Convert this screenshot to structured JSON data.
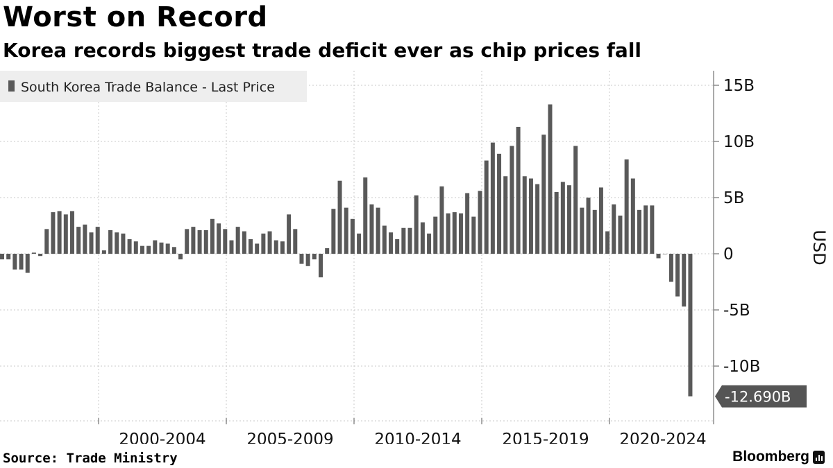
{
  "header": {
    "title": "Worst on Record",
    "subtitle": "Korea records biggest trade deficit ever as chip prices fall"
  },
  "footer": {
    "source": "Source: Trade Ministry",
    "brand": "Bloomberg"
  },
  "colors": {
    "bar": "#595959",
    "grid": "#c8c8c8",
    "axis": "#555555",
    "legend_bg": "#eeeeee",
    "last_price_bg": "#555555"
  },
  "chart_data": {
    "type": "bar",
    "title": "Worst on Record",
    "subtitle": "Korea records biggest trade deficit ever as chip prices fall",
    "ylabel": "USD",
    "xlabel": "",
    "ylim": [
      -15,
      16.3
    ],
    "y_ticks": [
      {
        "value": 15,
        "label": "15B"
      },
      {
        "value": 10,
        "label": "10B"
      },
      {
        "value": 5,
        "label": "5B"
      },
      {
        "value": 0,
        "label": "0"
      },
      {
        "value": -5,
        "label": "-5B"
      },
      {
        "value": -10,
        "label": "-10B"
      }
    ],
    "x_ticks": [
      "2000-2004",
      "2005-2009",
      "2010-2014",
      "2015-2019",
      "2020-2024"
    ],
    "legend": {
      "label": "South Korea Trade Balance - Last Price",
      "position": "top-left"
    },
    "last_price": {
      "value": -12.69,
      "label": "-12.690B"
    },
    "grid": true,
    "series": [
      {
        "name": "South Korea Trade Balance - Last Price",
        "unit": "USD billions, quarterly",
        "values": [
          -0.5,
          -0.5,
          -1.4,
          -1.4,
          -1.7,
          0.1,
          -0.2,
          2.2,
          3.7,
          3.8,
          3.5,
          3.8,
          2.4,
          2.6,
          1.9,
          2.4,
          0.3,
          2.1,
          1.9,
          1.8,
          1.3,
          1.1,
          0.7,
          0.7,
          1.2,
          1.0,
          0.9,
          0.6,
          -0.5,
          2.2,
          2.4,
          2.1,
          2.1,
          3.1,
          2.7,
          2.2,
          1.2,
          2.4,
          2.0,
          1.3,
          0.9,
          1.8,
          2.0,
          1.2,
          1.1,
          3.5,
          2.2,
          -0.9,
          -1.1,
          -0.5,
          -2.1,
          0.5,
          4.0,
          6.5,
          4.1,
          3.1,
          1.8,
          6.8,
          4.4,
          4.1,
          2.5,
          1.9,
          1.3,
          2.3,
          2.3,
          5.2,
          2.8,
          1.8,
          3.3,
          6.0,
          3.6,
          3.7,
          3.6,
          5.4,
          3.3,
          5.6,
          8.3,
          9.9,
          8.9,
          6.9,
          9.6,
          11.3,
          6.9,
          6.7,
          6.2,
          10.6,
          13.3,
          5.5,
          6.4,
          6.1,
          9.6,
          4.1,
          5.0,
          3.9,
          5.9,
          2.0,
          4.4,
          3.4,
          8.4,
          6.7,
          3.9,
          4.3,
          4.3,
          -0.4,
          0.0,
          -2.5,
          -3.8,
          -4.7,
          -12.69
        ]
      }
    ]
  }
}
